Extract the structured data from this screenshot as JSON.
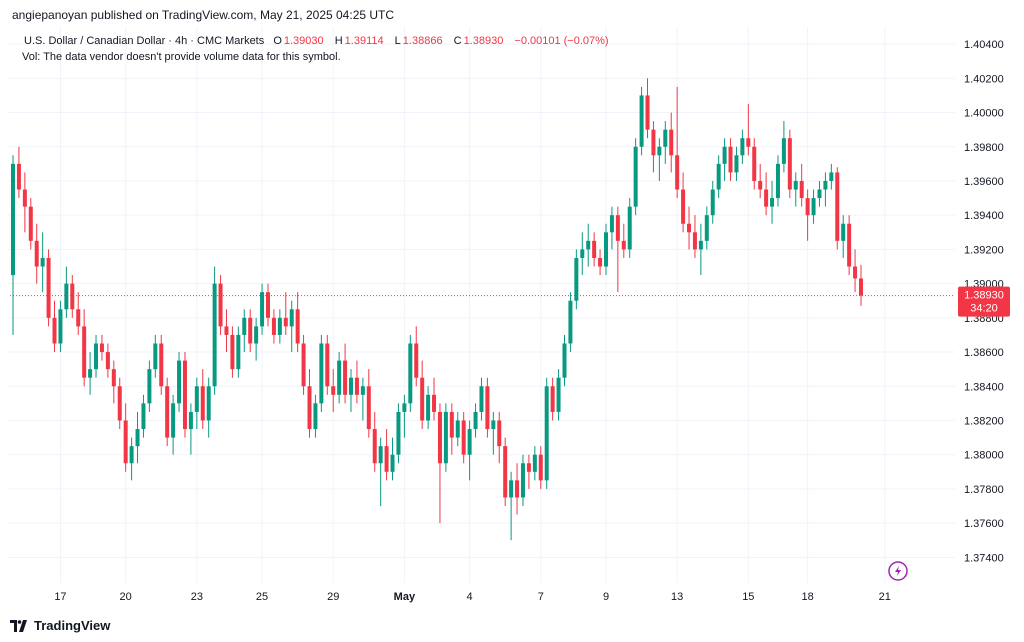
{
  "header": {
    "published": "angiepanoyan published on TradingView.com, May 21, 2025 04:25 UTC"
  },
  "legend": {
    "symbol": "U.S. Dollar / Canadian Dollar · 4h · CMC Markets",
    "o_label": "O",
    "o": "1.39030",
    "h_label": "H",
    "h": "1.39114",
    "l_label": "L",
    "l": "1.38866",
    "c_label": "C",
    "c": "1.38930",
    "change": "−0.00101 (−0.07%)",
    "vol_note": "Vol: The data vendor doesn't provide volume data for this symbol."
  },
  "price_badge": {
    "price": "1.38930",
    "countdown": "34:20"
  },
  "footer": {
    "brand": "TradingView"
  },
  "colors": {
    "up": "#089981",
    "down": "#f23645",
    "grid": "#f0f3fa",
    "text": "#131722"
  },
  "chart_data": {
    "type": "candlestick",
    "title": "U.S. Dollar / Canadian Dollar · 4h · CMC Markets",
    "ylim": [
      1.3725,
      1.405
    ],
    "y_ticks": [
      "1.37400",
      "1.37600",
      "1.37800",
      "1.38000",
      "1.38200",
      "1.38400",
      "1.38600",
      "1.38800",
      "1.39000",
      "1.39200",
      "1.39400",
      "1.39600",
      "1.39800",
      "1.40000",
      "1.40200",
      "1.40400"
    ],
    "x_ticks": [
      {
        "label": "17",
        "index": 8
      },
      {
        "label": "20",
        "index": 19
      },
      {
        "label": "23",
        "index": 31
      },
      {
        "label": "25",
        "index": 42
      },
      {
        "label": "29",
        "index": 54
      },
      {
        "label": "May",
        "index": 66
      },
      {
        "label": "4",
        "index": 77
      },
      {
        "label": "7",
        "index": 89
      },
      {
        "label": "9",
        "index": 100
      },
      {
        "label": "13",
        "index": 112
      },
      {
        "label": "15",
        "index": 124
      },
      {
        "label": "18",
        "index": 134
      },
      {
        "label": "21",
        "index": 147
      }
    ],
    "last_price": 1.3893,
    "candles": [
      [
        1.3905,
        1.3975,
        1.387,
        1.397
      ],
      [
        1.397,
        1.398,
        1.395,
        1.3955
      ],
      [
        1.3955,
        1.3965,
        1.393,
        1.3945
      ],
      [
        1.3945,
        1.395,
        1.392,
        1.3925
      ],
      [
        1.3925,
        1.3935,
        1.39,
        1.391
      ],
      [
        1.391,
        1.393,
        1.3895,
        1.3915
      ],
      [
        1.3915,
        1.392,
        1.3875,
        1.388
      ],
      [
        1.388,
        1.389,
        1.386,
        1.3865
      ],
      [
        1.3865,
        1.389,
        1.386,
        1.3885
      ],
      [
        1.3885,
        1.391,
        1.388,
        1.39
      ],
      [
        1.39,
        1.3905,
        1.388,
        1.3885
      ],
      [
        1.3885,
        1.3895,
        1.387,
        1.3875
      ],
      [
        1.3875,
        1.3885,
        1.384,
        1.3845
      ],
      [
        1.3845,
        1.386,
        1.3835,
        1.385
      ],
      [
        1.385,
        1.387,
        1.3845,
        1.3865
      ],
      [
        1.3865,
        1.387,
        1.3855,
        1.386
      ],
      [
        1.386,
        1.3865,
        1.3845,
        1.385
      ],
      [
        1.385,
        1.3855,
        1.383,
        1.384
      ],
      [
        1.384,
        1.3845,
        1.3815,
        1.382
      ],
      [
        1.382,
        1.383,
        1.379,
        1.3795
      ],
      [
        1.3795,
        1.381,
        1.3785,
        1.3805
      ],
      [
        1.3805,
        1.3825,
        1.3795,
        1.3815
      ],
      [
        1.3815,
        1.3835,
        1.381,
        1.383
      ],
      [
        1.383,
        1.3855,
        1.3825,
        1.385
      ],
      [
        1.385,
        1.387,
        1.3845,
        1.3865
      ],
      [
        1.3865,
        1.387,
        1.3835,
        1.384
      ],
      [
        1.384,
        1.3845,
        1.3805,
        1.381
      ],
      [
        1.381,
        1.3835,
        1.38,
        1.383
      ],
      [
        1.383,
        1.386,
        1.3825,
        1.3855
      ],
      [
        1.3855,
        1.386,
        1.381,
        1.3815
      ],
      [
        1.3815,
        1.383,
        1.38,
        1.3825
      ],
      [
        1.3825,
        1.3845,
        1.3815,
        1.384
      ],
      [
        1.384,
        1.385,
        1.3815,
        1.382
      ],
      [
        1.382,
        1.3845,
        1.381,
        1.384
      ],
      [
        1.384,
        1.391,
        1.3835,
        1.39
      ],
      [
        1.39,
        1.3905,
        1.387,
        1.3875
      ],
      [
        1.3875,
        1.3885,
        1.386,
        1.387
      ],
      [
        1.387,
        1.3875,
        1.3845,
        1.385
      ],
      [
        1.385,
        1.3875,
        1.3845,
        1.387
      ],
      [
        1.387,
        1.3885,
        1.386,
        1.388
      ],
      [
        1.388,
        1.3885,
        1.386,
        1.3865
      ],
      [
        1.3865,
        1.388,
        1.3855,
        1.3875
      ],
      [
        1.3875,
        1.39,
        1.387,
        1.3895
      ],
      [
        1.3895,
        1.39,
        1.3875,
        1.388
      ],
      [
        1.388,
        1.3885,
        1.3865,
        1.387
      ],
      [
        1.387,
        1.3885,
        1.3865,
        1.388
      ],
      [
        1.388,
        1.3895,
        1.387,
        1.3875
      ],
      [
        1.3875,
        1.389,
        1.386,
        1.3885
      ],
      [
        1.3885,
        1.3895,
        1.386,
        1.3865
      ],
      [
        1.3865,
        1.387,
        1.3835,
        1.384
      ],
      [
        1.384,
        1.385,
        1.381,
        1.3815
      ],
      [
        1.3815,
        1.3835,
        1.381,
        1.383
      ],
      [
        1.383,
        1.387,
        1.3825,
        1.3865
      ],
      [
        1.3865,
        1.387,
        1.3835,
        1.384
      ],
      [
        1.384,
        1.385,
        1.3825,
        1.3835
      ],
      [
        1.3835,
        1.386,
        1.383,
        1.3855
      ],
      [
        1.3855,
        1.3865,
        1.383,
        1.3835
      ],
      [
        1.3835,
        1.385,
        1.3825,
        1.3845
      ],
      [
        1.3845,
        1.3855,
        1.383,
        1.3835
      ],
      [
        1.3835,
        1.3845,
        1.382,
        1.384
      ],
      [
        1.384,
        1.385,
        1.381,
        1.3815
      ],
      [
        1.3815,
        1.3825,
        1.379,
        1.3795
      ],
      [
        1.3795,
        1.381,
        1.377,
        1.3805
      ],
      [
        1.3805,
        1.3815,
        1.3785,
        1.379
      ],
      [
        1.379,
        1.381,
        1.3785,
        1.38
      ],
      [
        1.38,
        1.383,
        1.3795,
        1.3825
      ],
      [
        1.3825,
        1.3835,
        1.381,
        1.383
      ],
      [
        1.383,
        1.387,
        1.3825,
        1.3865
      ],
      [
        1.3865,
        1.3875,
        1.384,
        1.3845
      ],
      [
        1.3845,
        1.3855,
        1.3815,
        1.382
      ],
      [
        1.382,
        1.384,
        1.3815,
        1.3835
      ],
      [
        1.3835,
        1.3845,
        1.382,
        1.3825
      ],
      [
        1.3825,
        1.383,
        1.376,
        1.3795
      ],
      [
        1.3795,
        1.383,
        1.379,
        1.3825
      ],
      [
        1.3825,
        1.383,
        1.38,
        1.381
      ],
      [
        1.381,
        1.3825,
        1.3805,
        1.382
      ],
      [
        1.382,
        1.3825,
        1.3795,
        1.38
      ],
      [
        1.38,
        1.382,
        1.3785,
        1.3815
      ],
      [
        1.3815,
        1.383,
        1.381,
        1.3825
      ],
      [
        1.3825,
        1.3845,
        1.382,
        1.384
      ],
      [
        1.384,
        1.3845,
        1.381,
        1.3815
      ],
      [
        1.3815,
        1.3825,
        1.38,
        1.382
      ],
      [
        1.382,
        1.3825,
        1.3795,
        1.3805
      ],
      [
        1.3805,
        1.381,
        1.377,
        1.3775
      ],
      [
        1.3775,
        1.379,
        1.375,
        1.3785
      ],
      [
        1.3785,
        1.3795,
        1.3765,
        1.3775
      ],
      [
        1.3775,
        1.38,
        1.377,
        1.3795
      ],
      [
        1.3795,
        1.38,
        1.378,
        1.379
      ],
      [
        1.379,
        1.3805,
        1.3785,
        1.38
      ],
      [
        1.38,
        1.3805,
        1.378,
        1.3785
      ],
      [
        1.3785,
        1.3845,
        1.378,
        1.384
      ],
      [
        1.384,
        1.3845,
        1.382,
        1.3825
      ],
      [
        1.3825,
        1.385,
        1.382,
        1.3845
      ],
      [
        1.3845,
        1.387,
        1.384,
        1.3865
      ],
      [
        1.3865,
        1.3895,
        1.386,
        1.389
      ],
      [
        1.389,
        1.392,
        1.3885,
        1.3915
      ],
      [
        1.3915,
        1.393,
        1.3905,
        1.392
      ],
      [
        1.392,
        1.3935,
        1.391,
        1.3925
      ],
      [
        1.3925,
        1.393,
        1.391,
        1.3915
      ],
      [
        1.3915,
        1.392,
        1.3905,
        1.391
      ],
      [
        1.391,
        1.3935,
        1.3905,
        1.393
      ],
      [
        1.393,
        1.3945,
        1.392,
        1.394
      ],
      [
        1.394,
        1.3945,
        1.3895,
        1.3925
      ],
      [
        1.3925,
        1.3935,
        1.3915,
        1.392
      ],
      [
        1.392,
        1.395,
        1.3915,
        1.3945
      ],
      [
        1.3945,
        1.3985,
        1.394,
        1.398
      ],
      [
        1.398,
        1.4015,
        1.3975,
        1.401
      ],
      [
        1.401,
        1.402,
        1.3985,
        1.399
      ],
      [
        1.399,
        1.3995,
        1.3965,
        1.3975
      ],
      [
        1.3975,
        1.3985,
        1.396,
        1.398
      ],
      [
        1.398,
        1.3995,
        1.397,
        1.399
      ],
      [
        1.399,
        1.4,
        1.3965,
        1.3975
      ],
      [
        1.3975,
        1.4015,
        1.395,
        1.3955
      ],
      [
        1.3955,
        1.3965,
        1.393,
        1.3935
      ],
      [
        1.3935,
        1.3945,
        1.392,
        1.393
      ],
      [
        1.393,
        1.394,
        1.3915,
        1.392
      ],
      [
        1.392,
        1.3935,
        1.3905,
        1.3925
      ],
      [
        1.3925,
        1.3945,
        1.392,
        1.394
      ],
      [
        1.394,
        1.396,
        1.3935,
        1.3955
      ],
      [
        1.3955,
        1.3975,
        1.395,
        1.397
      ],
      [
        1.397,
        1.3985,
        1.396,
        1.398
      ],
      [
        1.398,
        1.3985,
        1.396,
        1.3965
      ],
      [
        1.3965,
        1.398,
        1.396,
        1.3975
      ],
      [
        1.3975,
        1.399,
        1.397,
        1.3985
      ],
      [
        1.3985,
        1.4005,
        1.3975,
        1.398
      ],
      [
        1.398,
        1.3985,
        1.3955,
        1.396
      ],
      [
        1.396,
        1.397,
        1.395,
        1.3955
      ],
      [
        1.3955,
        1.3965,
        1.394,
        1.3945
      ],
      [
        1.3945,
        1.396,
        1.3935,
        1.395
      ],
      [
        1.395,
        1.3975,
        1.3945,
        1.397
      ],
      [
        1.397,
        1.3995,
        1.3965,
        1.3985
      ],
      [
        1.3985,
        1.399,
        1.395,
        1.3955
      ],
      [
        1.3955,
        1.3965,
        1.3945,
        1.396
      ],
      [
        1.396,
        1.397,
        1.3945,
        1.395
      ],
      [
        1.395,
        1.3955,
        1.3925,
        1.394
      ],
      [
        1.394,
        1.3955,
        1.3935,
        1.395
      ],
      [
        1.395,
        1.396,
        1.3945,
        1.3955
      ],
      [
        1.3955,
        1.3965,
        1.3945,
        1.396
      ],
      [
        1.396,
        1.397,
        1.3955,
        1.3965
      ],
      [
        1.3965,
        1.3968,
        1.392,
        1.3925
      ],
      [
        1.3925,
        1.394,
        1.3915,
        1.3935
      ],
      [
        1.3935,
        1.394,
        1.3905,
        1.391
      ],
      [
        1.391,
        1.392,
        1.3895,
        1.3903
      ],
      [
        1.3903,
        1.3911,
        1.3887,
        1.3893
      ]
    ]
  }
}
